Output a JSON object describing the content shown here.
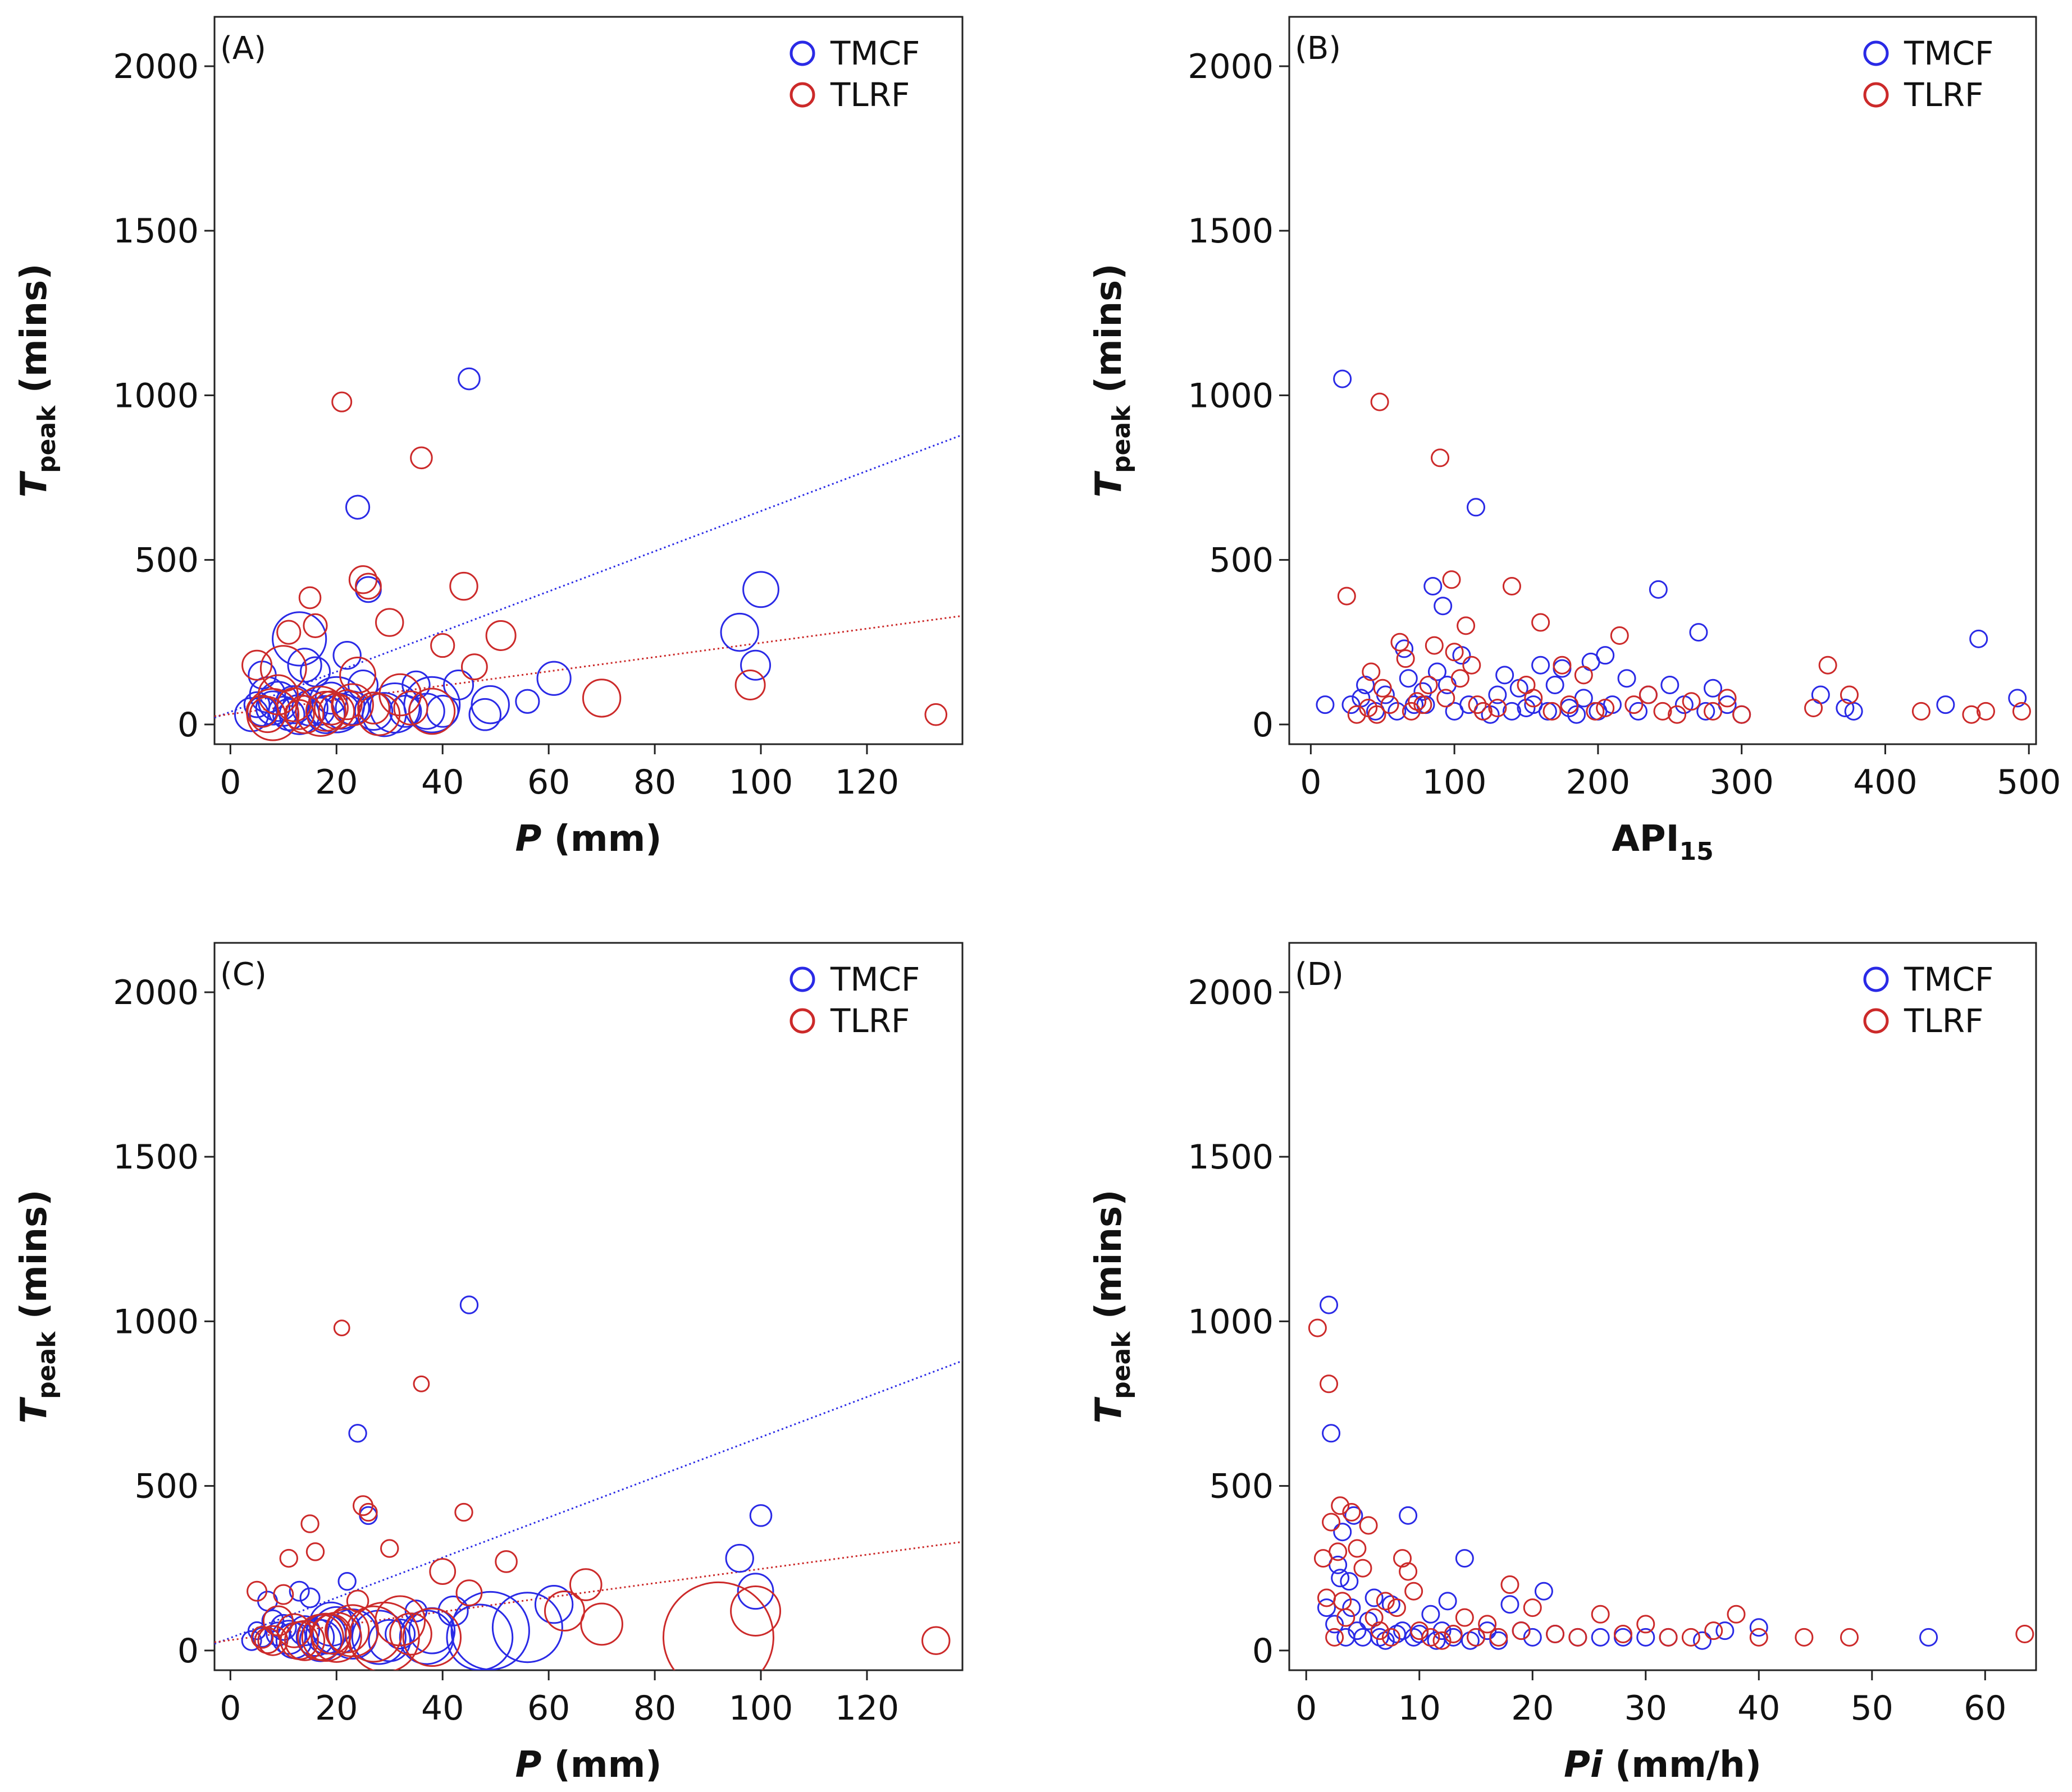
{
  "colors": {
    "TMCF": "#2a2ae6",
    "TLRF": "#cc2a2a"
  },
  "chart_data": [
    {
      "id": "A",
      "type": "scatter",
      "panel_label": "(A)",
      "xlabel": {
        "italic": "P",
        "rest": " (mm)"
      },
      "ylabel": {
        "main": "T",
        "sub": "peak",
        "rest": " (mins)"
      },
      "xlim": [
        -3,
        138
      ],
      "ylim": [
        -60,
        2150
      ],
      "xticks": [
        0,
        20,
        40,
        60,
        80,
        100,
        120
      ],
      "xtick_labels": [
        "0",
        "20",
        "40",
        "60",
        "80",
        "100",
        "120"
      ],
      "yticks": [
        0,
        500,
        1000,
        1500,
        2000
      ],
      "ytick_labels": [
        "0",
        "500",
        "1000",
        "1500",
        "2000"
      ],
      "legend": [
        "TMCF",
        "TLRF"
      ],
      "legend_position": "top-right",
      "trendlines": [
        {
          "series": "TMCF",
          "x": [
            -3,
            138
          ],
          "y": [
            20,
            880
          ]
        },
        {
          "series": "TLRF",
          "x": [
            -3,
            138
          ],
          "y": [
            25,
            330
          ]
        }
      ],
      "series": [
        {
          "name": "TMCF",
          "x": [
            4,
            5,
            6,
            6,
            7,
            8,
            9,
            10,
            11,
            12,
            13,
            13,
            14,
            15,
            16,
            17,
            18,
            19,
            20,
            21,
            22,
            23,
            24,
            25,
            26,
            27,
            29,
            31,
            33,
            35,
            37,
            38,
            40,
            43,
            45,
            48,
            49,
            56,
            61,
            96,
            99,
            100
          ],
          "y": [
            30,
            60,
            40,
            150,
            90,
            50,
            70,
            40,
            30,
            60,
            260,
            30,
            180,
            50,
            160,
            40,
            30,
            80,
            60,
            40,
            210,
            50,
            660,
            120,
            410,
            40,
            30,
            50,
            40,
            120,
            40,
            60,
            40,
            120,
            1050,
            30,
            60,
            70,
            140,
            280,
            180,
            410
          ],
          "size": [
            1.2,
            0.8,
            1,
            0.9,
            1.3,
            1.2,
            1.5,
            1,
            1.1,
            1.4,
            2.2,
            1.5,
            1.2,
            1.3,
            1,
            0.9,
            1.4,
            1.1,
            2.3,
            1.3,
            0.9,
            1.2,
            0.7,
            1,
            0.8,
            1.4,
            1.7,
            2,
            1.1,
            0.9,
            1.3,
            2.3,
            1.1,
            1,
            0.6,
            1.1,
            1.4,
            0.7,
            1.2,
            1.4,
            1,
            1.3
          ]
        },
        {
          "name": "TLRF",
          "x": [
            5,
            6,
            7,
            8,
            9,
            10,
            11,
            12,
            13,
            14,
            15,
            16,
            17,
            18,
            19,
            20,
            21,
            22,
            23,
            24,
            25,
            26,
            27,
            28,
            30,
            32,
            34,
            36,
            38,
            40,
            44,
            46,
            51,
            70,
            98,
            133
          ],
          "y": [
            180,
            40,
            30,
            30,
            90,
            170,
            280,
            60,
            30,
            30,
            385,
            300,
            40,
            40,
            50,
            40,
            980,
            60,
            60,
            150,
            440,
            420,
            50,
            30,
            310,
            90,
            50,
            810,
            40,
            240,
            420,
            175,
            270,
            80,
            120,
            30
          ],
          "size": [
            1,
            1.1,
            1.3,
            2.1,
            1.5,
            1.8,
            0.7,
            1.2,
            1,
            1.4,
            0.6,
            0.7,
            2,
            1.5,
            1.2,
            1.3,
            0.5,
            1,
            1.6,
            1.3,
            0.9,
            0.8,
            1.1,
            1.6,
            0.9,
            1.6,
            1.2,
            0.6,
            1.8,
            0.7,
            0.9,
            0.8,
            1,
            1.4,
            1,
            0.6
          ]
        }
      ]
    },
    {
      "id": "B",
      "type": "scatter",
      "panel_label": "(B)",
      "xlabel": {
        "main": "API",
        "sub": "15"
      },
      "ylabel": {
        "main": "T",
        "sub": "peak",
        "rest": " (mins)"
      },
      "xlim": [
        -15,
        505
      ],
      "ylim": [
        -60,
        2150
      ],
      "xticks": [
        0,
        100,
        200,
        300,
        400,
        500
      ],
      "xtick_labels": [
        "0",
        "100",
        "200",
        "300",
        "400",
        "500"
      ],
      "yticks": [
        0,
        500,
        1000,
        1500,
        2000
      ],
      "ytick_labels": [
        "0",
        "500",
        "1000",
        "1500",
        "2000"
      ],
      "legend": [
        "TMCF",
        "TLRF"
      ],
      "legend_position": "top-right",
      "series": [
        {
          "name": "TMCF",
          "x": [
            10,
            22,
            28,
            35,
            38,
            45,
            52,
            60,
            65,
            68,
            72,
            78,
            80,
            85,
            88,
            92,
            95,
            100,
            105,
            110,
            115,
            120,
            125,
            130,
            135,
            140,
            145,
            150,
            155,
            160,
            165,
            170,
            175,
            180,
            185,
            190,
            195,
            200,
            205,
            210,
            220,
            228,
            235,
            242,
            250,
            260,
            270,
            275,
            280,
            290,
            300,
            355,
            372,
            378,
            442,
            465,
            492
          ],
          "y": [
            60,
            1050,
            60,
            80,
            120,
            40,
            90,
            40,
            230,
            140,
            60,
            100,
            60,
            420,
            160,
            360,
            120,
            40,
            210,
            60,
            660,
            40,
            30,
            90,
            150,
            40,
            110,
            50,
            60,
            180,
            40,
            120,
            170,
            50,
            30,
            80,
            190,
            40,
            210,
            60,
            140,
            40,
            90,
            410,
            120,
            60,
            280,
            40,
            110,
            60,
            30,
            90,
            50,
            40,
            60,
            260,
            80
          ]
        },
        {
          "name": "TLRF",
          "x": [
            25,
            32,
            40,
            42,
            46,
            48,
            50,
            55,
            62,
            66,
            70,
            74,
            78,
            82,
            86,
            90,
            94,
            98,
            100,
            104,
            108,
            112,
            116,
            120,
            130,
            140,
            150,
            155,
            160,
            168,
            175,
            180,
            190,
            198,
            205,
            215,
            225,
            235,
            245,
            255,
            265,
            280,
            290,
            300,
            350,
            360,
            375,
            425,
            460,
            470,
            495
          ],
          "y": [
            390,
            30,
            50,
            160,
            30,
            980,
            110,
            60,
            250,
            200,
            40,
            70,
            60,
            120,
            240,
            810,
            80,
            440,
            220,
            140,
            300,
            180,
            60,
            40,
            50,
            420,
            120,
            80,
            310,
            40,
            180,
            60,
            150,
            40,
            50,
            270,
            60,
            90,
            40,
            30,
            70,
            40,
            80,
            30,
            50,
            180,
            90,
            40,
            30,
            40,
            40
          ]
        }
      ]
    },
    {
      "id": "C",
      "type": "scatter",
      "panel_label": "(C)",
      "xlabel": {
        "italic": "P",
        "rest": " (mm)"
      },
      "ylabel": {
        "main": "T",
        "sub": "peak",
        "rest": " (mins)"
      },
      "xlim": [
        -3,
        138
      ],
      "ylim": [
        -60,
        2150
      ],
      "xticks": [
        0,
        20,
        40,
        60,
        80,
        100,
        120
      ],
      "xtick_labels": [
        "0",
        "20",
        "40",
        "60",
        "80",
        "100",
        "120"
      ],
      "yticks": [
        0,
        500,
        1000,
        1500,
        2000
      ],
      "ytick_labels": [
        "0",
        "500",
        "1000",
        "1500",
        "2000"
      ],
      "legend": [
        "TMCF",
        "TLRF"
      ],
      "legend_position": "top-right",
      "trendlines": [
        {
          "series": "TMCF",
          "x": [
            -3,
            138
          ],
          "y": [
            20,
            880
          ]
        },
        {
          "series": "TLRF",
          "x": [
            -3,
            138
          ],
          "y": [
            25,
            330
          ]
        }
      ],
      "series": [
        {
          "name": "TMCF",
          "x": [
            4,
            5,
            6,
            7,
            8,
            9,
            10,
            11,
            12,
            13,
            14,
            15,
            16,
            17,
            18,
            19,
            20,
            22,
            23,
            24,
            26,
            28,
            30,
            32,
            35,
            37,
            38,
            42,
            45,
            47,
            49,
            56,
            61,
            96,
            99,
            100
          ],
          "y": [
            30,
            60,
            40,
            150,
            90,
            50,
            70,
            40,
            30,
            180,
            60,
            160,
            40,
            30,
            50,
            80,
            60,
            210,
            50,
            660,
            410,
            40,
            30,
            50,
            120,
            40,
            60,
            120,
            1050,
            40,
            60,
            70,
            140,
            280,
            180,
            410
          ],
          "size": [
            0.5,
            0.4,
            0.5,
            0.5,
            0.6,
            0.7,
            0.8,
            1.2,
            1.3,
            0.5,
            1,
            0.5,
            1.4,
            1.6,
            1.5,
            1.7,
            1.9,
            0.4,
            2,
            0.4,
            0.4,
            2.2,
            1.6,
            1,
            0.6,
            2.2,
            1.8,
            1,
            0.4,
            2.8,
            3.4,
            3,
            1.4,
            0.9,
            1.3,
            0.6
          ]
        },
        {
          "name": "TLRF",
          "x": [
            5,
            6,
            7,
            8,
            9,
            10,
            11,
            12,
            13,
            14,
            15,
            16,
            17,
            18,
            19,
            20,
            21,
            22,
            23,
            24,
            25,
            26,
            27,
            29,
            30,
            32,
            34,
            36,
            38,
            40,
            44,
            45,
            52,
            63,
            67,
            70,
            92,
            99,
            133
          ],
          "y": [
            180,
            40,
            30,
            30,
            90,
            170,
            280,
            60,
            30,
            30,
            385,
            300,
            40,
            40,
            50,
            40,
            980,
            60,
            60,
            150,
            440,
            420,
            50,
            40,
            310,
            90,
            50,
            810,
            40,
            240,
            420,
            175,
            270,
            120,
            200,
            80,
            40,
            120,
            30
          ],
          "size": [
            0.5,
            0.6,
            0.8,
            1,
            1,
            0.5,
            0.4,
            1.2,
            1.4,
            1.5,
            0.4,
            0.4,
            1.8,
            1.9,
            1.5,
            2,
            0.3,
            1.7,
            2.1,
            0.6,
            0.5,
            0.4,
            2.3,
            3,
            0.4,
            2,
            1.6,
            0.3,
            2.4,
            0.8,
            0.4,
            0.8,
            0.6,
            1.5,
            1.1,
            1.6,
            5,
            2,
            0.9
          ]
        }
      ]
    },
    {
      "id": "D",
      "type": "scatter",
      "panel_label": "(D)",
      "xlabel": {
        "italic": "Pi",
        "rest": " (mm/h)"
      },
      "ylabel": {
        "main": "T",
        "sub": "peak",
        "rest": " (mins)"
      },
      "xlim": [
        -1.5,
        64.5
      ],
      "ylim": [
        -60,
        2150
      ],
      "xticks": [
        0,
        10,
        20,
        30,
        40,
        50,
        60
      ],
      "xtick_labels": [
        "0",
        "10",
        "20",
        "30",
        "40",
        "50",
        "60"
      ],
      "yticks": [
        0,
        500,
        1000,
        1500,
        2000
      ],
      "ytick_labels": [
        "0",
        "500",
        "1000",
        "1500",
        "2000"
      ],
      "legend": [
        "TMCF",
        "TLRF"
      ],
      "legend_position": "top-right",
      "series": [
        {
          "name": "TMCF",
          "x": [
            1.8,
            2,
            2.2,
            2.5,
            2.8,
            3,
            3.2,
            3.5,
            3.8,
            4,
            4.2,
            4.5,
            5,
            5.5,
            6,
            6.5,
            7,
            7.5,
            8,
            8.5,
            9,
            9.5,
            10,
            11,
            11.5,
            12,
            12.5,
            13,
            14,
            14.5,
            15,
            16,
            17,
            18,
            19,
            20,
            21,
            22,
            24,
            26,
            28,
            30,
            32,
            35,
            37,
            40,
            55
          ],
          "y": [
            130,
            1050,
            660,
            80,
            260,
            220,
            360,
            40,
            210,
            130,
            410,
            60,
            40,
            90,
            160,
            40,
            30,
            140,
            50,
            60,
            410,
            40,
            50,
            110,
            30,
            60,
            150,
            40,
            280,
            30,
            40,
            60,
            30,
            140,
            60,
            40,
            180,
            50,
            40,
            40,
            40,
            40,
            40,
            30,
            60,
            70,
            40
          ]
        },
        {
          "name": "TLRF",
          "x": [
            1,
            1.5,
            1.8,
            2,
            2.2,
            2.5,
            2.8,
            3,
            3.2,
            3.5,
            4,
            4.5,
            5,
            5.5,
            6,
            6.5,
            7,
            7.5,
            8,
            8.5,
            9,
            9.5,
            10,
            11,
            12,
            13,
            14,
            15,
            16,
            17,
            18,
            19,
            20,
            22,
            24,
            26,
            28,
            30,
            32,
            34,
            36,
            38,
            40,
            44,
            48,
            63.5
          ],
          "y": [
            980,
            280,
            160,
            810,
            390,
            40,
            300,
            440,
            150,
            100,
            420,
            310,
            250,
            380,
            100,
            60,
            150,
            40,
            130,
            280,
            240,
            180,
            60,
            40,
            30,
            50,
            100,
            40,
            80,
            40,
            200,
            60,
            130,
            50,
            40,
            110,
            50,
            80,
            40,
            40,
            60,
            110,
            40,
            40,
            40,
            50
          ]
        }
      ]
    }
  ]
}
